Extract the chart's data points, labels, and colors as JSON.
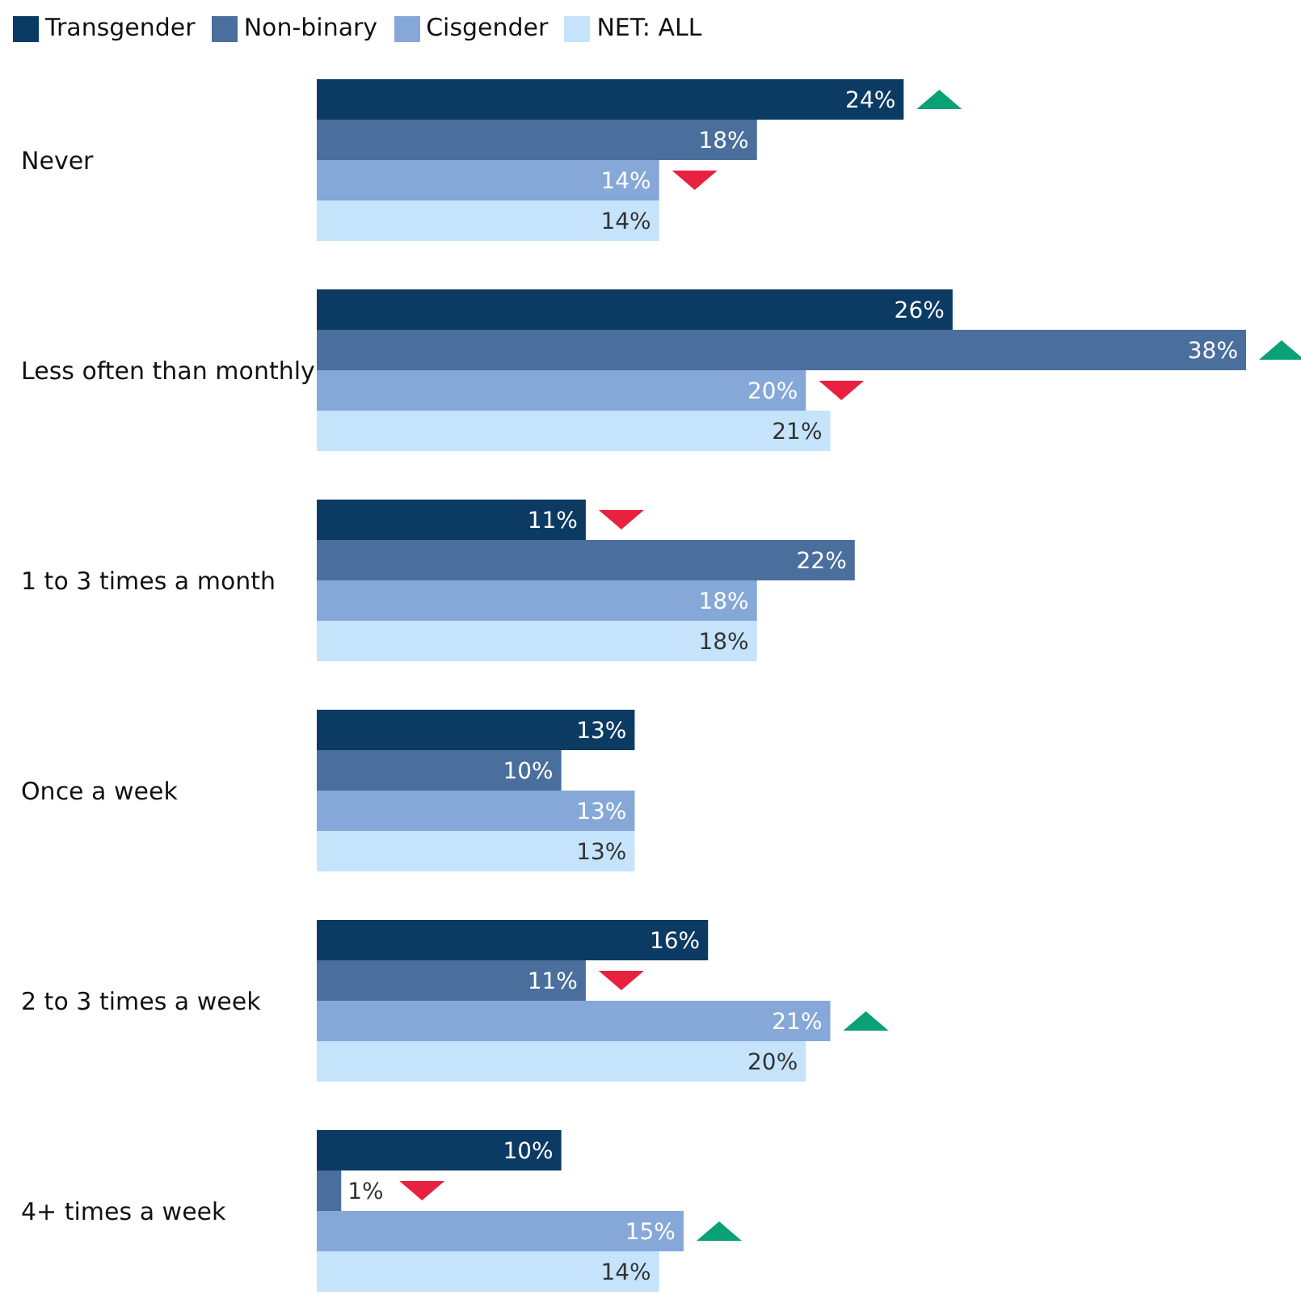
{
  "chart_data": {
    "type": "bar",
    "orientation": "horizontal",
    "categories": [
      "Never",
      "Less often than monthly",
      "1 to 3 times a month",
      "Once a week",
      "2 to 3 times a week",
      "4+ times a week"
    ],
    "series": [
      {
        "name": "Transgender",
        "color": "#0b3a63",
        "values": [
          24,
          26,
          11,
          13,
          16,
          10
        ],
        "value_labels": [
          "24%",
          "26%",
          "11%",
          "13%",
          "16%",
          "10%"
        ]
      },
      {
        "name": "Non-binary",
        "color": "#4a6f9c",
        "values": [
          18,
          38,
          22,
          10,
          11,
          1
        ],
        "value_labels": [
          "18%",
          "38%",
          "22%",
          "10%",
          "11%",
          "1%"
        ]
      },
      {
        "name": "Cisgender",
        "color": "#86a8d8",
        "values": [
          14,
          20,
          18,
          13,
          21,
          15
        ],
        "value_labels": [
          "14%",
          "20%",
          "18%",
          "13%",
          "21%",
          "15%"
        ]
      },
      {
        "name": "NET: ALL",
        "color": "#c5e4fb",
        "values": [
          14,
          21,
          18,
          13,
          20,
          14
        ],
        "value_labels": [
          "14%",
          "21%",
          "18%",
          "13%",
          "20%",
          "14%"
        ]
      }
    ],
    "legend": "top left",
    "tick_labels": "y"
  }
}
